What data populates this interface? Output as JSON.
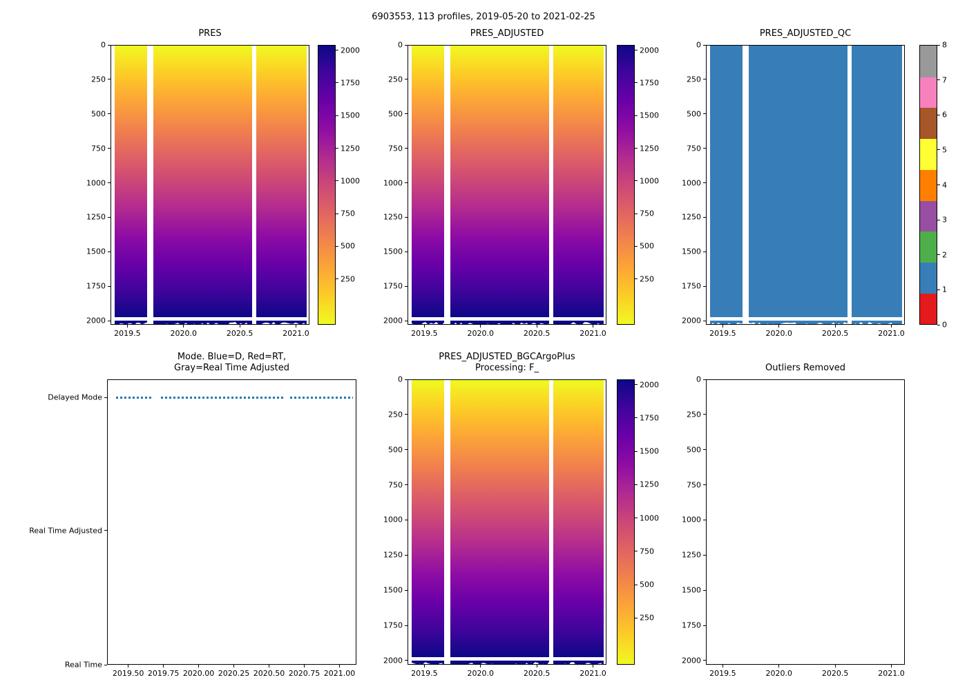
{
  "figure": {
    "suptitle": "6903553, 113 profiles, 2019-05-20 to 2021-02-25"
  },
  "palette": {
    "plasma_scale": [
      "#0d0887",
      "#41049d",
      "#6a00a8",
      "#8f0da4",
      "#b12a90",
      "#cc4778",
      "#e16462",
      "#f2844b",
      "#fca636",
      "#fcce25",
      "#f0f921"
    ],
    "set1_scale": [
      "#e41a1c",
      "#377eb8",
      "#4daf4a",
      "#984ea3",
      "#ff7f00",
      "#ffff33",
      "#a65628",
      "#f781bf",
      "#999999"
    ],
    "qc_fill": "#377eb8",
    "mode_marker": "#1f77b4",
    "spine": "#000000",
    "background": "#ffffff"
  },
  "chart_data": [
    {
      "id": "pres",
      "type": "heatmap",
      "title_lines": [
        "PRES"
      ],
      "xlim": [
        2019.35,
        2021.12
      ],
      "x_tick_values": [
        2019.5,
        2020.0,
        2020.5,
        2021.0
      ],
      "x_tick_labels": [
        "2019.5",
        "2020.0",
        "2020.5",
        "2021.0"
      ],
      "ylim": [
        0,
        2030
      ],
      "y_axis_inverted": true,
      "y_tick_values": [
        0,
        250,
        500,
        750,
        1000,
        1250,
        1500,
        1750,
        2000
      ],
      "y_tick_labels": [
        "0",
        "250",
        "500",
        "750",
        "1000",
        "1250",
        "1500",
        "1750",
        "2000"
      ],
      "value_description": "pressure in dbar, equal to depth: 0 at surface grading to ~2000 at bottom",
      "colormap": "plasma_r",
      "data_x_extent": [
        2019.38,
        2021.1
      ],
      "data_depth_extent": [
        0,
        2005
      ],
      "time_gaps": [
        [
          2019.67,
          2019.73
        ],
        [
          2020.61,
          2020.65
        ]
      ],
      "colorbar": {
        "colormap": "plasma",
        "vmin": -100,
        "vmax": 2040,
        "tick_values": [
          250,
          500,
          750,
          1000,
          1250,
          1500,
          1750,
          2000
        ],
        "tick_labels": [
          "250",
          "500",
          "750",
          "1000",
          "1250",
          "1500",
          "1750",
          "2000"
        ]
      }
    },
    {
      "id": "pres_adjusted",
      "type": "heatmap",
      "title_lines": [
        "PRES_ADJUSTED"
      ],
      "xlim": [
        2019.35,
        2021.12
      ],
      "x_tick_values": [
        2019.5,
        2020.0,
        2020.5,
        2021.0
      ],
      "x_tick_labels": [
        "2019.5",
        "2020.0",
        "2020.5",
        "2021.0"
      ],
      "ylim": [
        0,
        2030
      ],
      "y_axis_inverted": true,
      "y_tick_values": [
        0,
        250,
        500,
        750,
        1000,
        1250,
        1500,
        1750,
        2000
      ],
      "y_tick_labels": [
        "0",
        "250",
        "500",
        "750",
        "1000",
        "1250",
        "1500",
        "1750",
        "2000"
      ],
      "value_description": "adjusted pressure in dbar, 0 at surface grading to ~2000 at bottom",
      "colormap": "plasma_r",
      "data_x_extent": [
        2019.38,
        2021.1
      ],
      "data_depth_extent": [
        0,
        2005
      ],
      "time_gaps": [
        [
          2019.67,
          2019.73
        ],
        [
          2020.61,
          2020.65
        ]
      ],
      "colorbar": {
        "colormap": "plasma",
        "vmin": -100,
        "vmax": 2040,
        "tick_values": [
          250,
          500,
          750,
          1000,
          1250,
          1500,
          1750,
          2000
        ],
        "tick_labels": [
          "250",
          "500",
          "750",
          "1000",
          "1250",
          "1500",
          "1750",
          "2000"
        ]
      }
    },
    {
      "id": "pres_adjusted_qc",
      "type": "heatmap",
      "title_lines": [
        "PRES_ADJUSTED_QC"
      ],
      "xlim": [
        2019.35,
        2021.12
      ],
      "x_tick_values": [
        2019.5,
        2020.0,
        2020.5,
        2021.0
      ],
      "x_tick_labels": [
        "2019.5",
        "2020.0",
        "2020.5",
        "2021.0"
      ],
      "ylim": [
        0,
        2030
      ],
      "y_axis_inverted": true,
      "y_tick_values": [
        0,
        250,
        500,
        750,
        1000,
        1250,
        1500,
        1750,
        2000
      ],
      "y_tick_labels": [
        "0",
        "250",
        "500",
        "750",
        "1000",
        "1250",
        "1500",
        "1750",
        "2000"
      ],
      "value_description": "QC flag, constant value 1 (good data) everywhere",
      "constant_value": 1,
      "fill_color": "#377eb8",
      "data_x_extent": [
        2019.38,
        2021.1
      ],
      "data_depth_extent": [
        0,
        2005
      ],
      "time_gaps": [
        [
          2019.67,
          2019.73
        ],
        [
          2020.61,
          2020.65
        ]
      ],
      "colorbar": {
        "type": "discrete",
        "colormap": "Set1",
        "vmin": 0,
        "vmax": 8,
        "tick_values": [
          0,
          1,
          2,
          3,
          4,
          5,
          6,
          7,
          8
        ],
        "tick_labels": [
          "0",
          "1",
          "2",
          "3",
          "4",
          "5",
          "6",
          "7",
          "8"
        ],
        "colors": [
          "#e41a1c",
          "#377eb8",
          "#4daf4a",
          "#984ea3",
          "#ff7f00",
          "#ffff33",
          "#a65628",
          "#f781bf",
          "#999999"
        ]
      }
    },
    {
      "id": "mode",
      "type": "scatter",
      "title_lines": [
        "Mode. Blue=D, Red=RT,",
        "Gray=Real Time Adjusted"
      ],
      "xlim": [
        2019.35,
        2021.12
      ],
      "x_tick_values": [
        2019.5,
        2019.75,
        2020.0,
        2020.25,
        2020.5,
        2020.75,
        2021.0
      ],
      "x_tick_labels": [
        "2019.50",
        "2019.75",
        "2020.00",
        "2020.25",
        "2020.50",
        "2020.75",
        "2021.00"
      ],
      "y_categories": [
        "Real Time",
        "Real Time Adjusted",
        "Delayed Mode"
      ],
      "marker_color": "#1f77b4",
      "points_category": "Delayed Mode",
      "points_x_extent": [
        2019.41,
        2021.1
      ],
      "time_gaps": [
        [
          2019.67,
          2019.73
        ],
        [
          2020.61,
          2020.65
        ]
      ],
      "value_description": "all 113 profiles are Delayed Mode (blue markers)"
    },
    {
      "id": "pres_adjusted_bgc",
      "type": "heatmap",
      "title_lines": [
        "PRES_ADJUSTED_BGCArgoPlus",
        "Processing: F_"
      ],
      "xlim": [
        2019.35,
        2021.12
      ],
      "x_tick_values": [
        2019.5,
        2020.0,
        2020.5,
        2021.0
      ],
      "x_tick_labels": [
        "2019.5",
        "2020.0",
        "2020.5",
        "2021.0"
      ],
      "ylim": [
        0,
        2030
      ],
      "y_axis_inverted": true,
      "y_tick_values": [
        0,
        250,
        500,
        750,
        1000,
        1250,
        1500,
        1750,
        2000
      ],
      "y_tick_labels": [
        "0",
        "250",
        "500",
        "750",
        "1000",
        "1250",
        "1500",
        "1750",
        "2000"
      ],
      "value_description": "BGC Argo Plus adjusted pressure, 0 at surface grading to ~2000 at bottom",
      "colormap": "plasma_r",
      "data_x_extent": [
        2019.38,
        2021.1
      ],
      "data_depth_extent": [
        0,
        2005
      ],
      "time_gaps": [
        [
          2019.67,
          2019.73
        ],
        [
          2020.61,
          2020.65
        ]
      ],
      "colorbar": {
        "colormap": "plasma",
        "vmin": -100,
        "vmax": 2040,
        "tick_values": [
          250,
          500,
          750,
          1000,
          1250,
          1500,
          1750,
          2000
        ],
        "tick_labels": [
          "250",
          "500",
          "750",
          "1000",
          "1250",
          "1500",
          "1750",
          "2000"
        ]
      }
    },
    {
      "id": "outliers",
      "type": "empty",
      "title_lines": [
        "Outliers Removed"
      ],
      "xlim": [
        2019.35,
        2021.12
      ],
      "x_tick_values": [
        2019.5,
        2020.0,
        2020.5,
        2021.0
      ],
      "x_tick_labels": [
        "2019.5",
        "2020.0",
        "2020.5",
        "2021.0"
      ],
      "ylim": [
        0,
        2030
      ],
      "y_axis_inverted": true,
      "y_tick_values": [
        0,
        250,
        500,
        750,
        1000,
        1250,
        1500,
        1750,
        2000
      ],
      "y_tick_labels": [
        "0",
        "250",
        "500",
        "750",
        "1000",
        "1250",
        "1500",
        "1750",
        "2000"
      ],
      "value_description": "no outliers removed; axes empty"
    }
  ]
}
